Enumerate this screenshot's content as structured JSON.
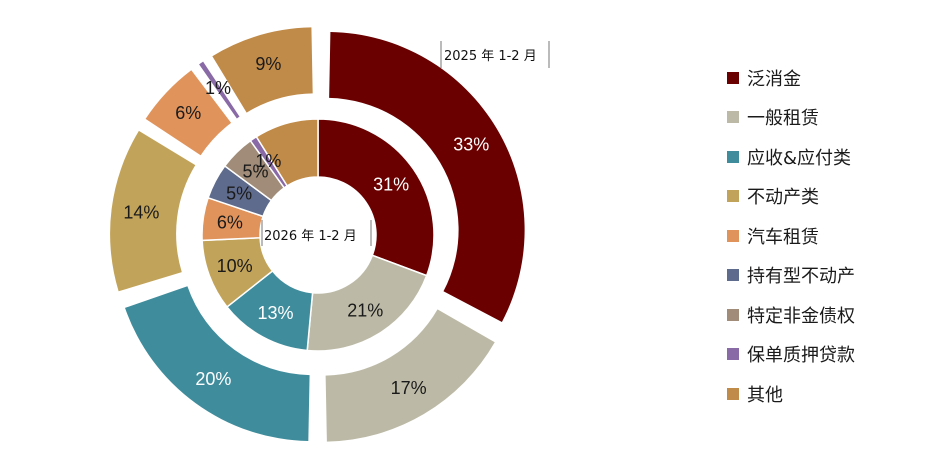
{
  "chart_data": {
    "type": "pie",
    "subtype": "nested-donut",
    "categories": [
      "泛消金",
      "一般租赁",
      "应收&应付类",
      "不动产类",
      "汽车租赁",
      "持有型不动产",
      "特定非金债权",
      "保单质押贷款",
      "其他"
    ],
    "colors": [
      "#6b0000",
      "#bcbaa6",
      "#3f8c9c",
      "#c2a35a",
      "#e0935b",
      "#5f6b8c",
      "#a08c78",
      "#8a6aa6",
      "#c08a48"
    ],
    "series": [
      {
        "name": "2026 年 1-2 月",
        "ring": "inner",
        "values": [
          31,
          21,
          13,
          10,
          6,
          5,
          5,
          1,
          9
        ],
        "labels": [
          "31%",
          "21%",
          "13%",
          "10%",
          "6%",
          "5%",
          "5%",
          "1%",
          ""
        ]
      },
      {
        "name": "2025 年 1-2 月",
        "ring": "outer",
        "values": [
          33,
          17,
          20,
          14,
          6,
          0,
          0,
          1,
          9
        ],
        "labels": [
          "33%",
          "17%",
          "20%",
          "14%",
          "6%",
          "",
          "",
          "1%",
          "9%"
        ]
      }
    ],
    "legend_position": "right"
  }
}
